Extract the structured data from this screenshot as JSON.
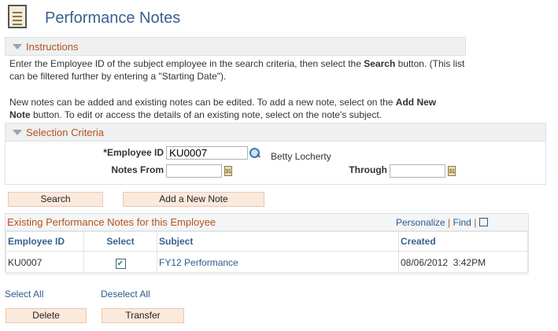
{
  "page": {
    "title": "Performance Notes",
    "icon": "notepad-icon"
  },
  "instructions": {
    "header": "Instructions",
    "p1_a": "Enter the Employee ID of the subject employee in the search criteria, then select the ",
    "p1_b": "Search",
    "p1_c": " button. (This list can be filtered further by entering a \"Starting Date\").",
    "p2_a": "New notes can be added and existing notes can be edited. To add a new note, select on the ",
    "p2_b": "Add New Note",
    "p2_c": " button. To edit or access the details of an existing note, select on the note's subject."
  },
  "criteria": {
    "header": "Selection Criteria",
    "employee_id_label": "*Employee ID",
    "employee_id_value": "KU0007",
    "employee_name": "Betty Locherty",
    "notes_from_label": "Notes From",
    "notes_from_value": "",
    "through_label": "Through",
    "through_value": "",
    "calendar_glyph": "31"
  },
  "buttons": {
    "search": "Search",
    "add_note": "Add a New Note",
    "delete": "Delete",
    "transfer": "Transfer"
  },
  "grid": {
    "title": "Existing Performance Notes for this Employee",
    "personalize": "Personalize",
    "find": "Find",
    "sep": "|",
    "columns": [
      "Employee ID",
      "Select",
      "Subject",
      "Created"
    ],
    "rows": [
      {
        "employee_id": "KU0007",
        "selected": true,
        "subject": "FY12 Performance",
        "created": "08/06/2012  3:42PM"
      }
    ]
  },
  "footer": {
    "select_all": "Select All",
    "deselect_all": "Deselect All"
  }
}
